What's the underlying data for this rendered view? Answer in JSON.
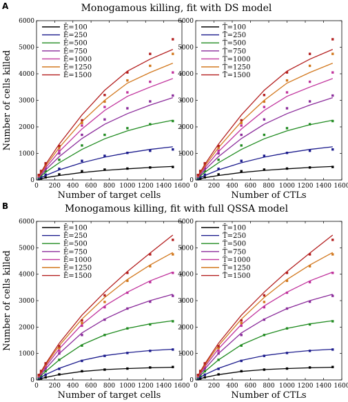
{
  "panels": [
    {
      "letter": "A",
      "title": "Monogamous killing, fit with DS model"
    },
    {
      "letter": "B",
      "title": "Monogamous killing, fit with full QSSA model"
    }
  ],
  "colors": [
    "#000000",
    "#1a1a8c",
    "#1e8a1e",
    "#8a2a9a",
    "#c0329c",
    "#d2781e",
    "#b31e1e"
  ],
  "chart_data": [
    {
      "type": "line",
      "panel": "A",
      "xlabel": "Number of target cells",
      "ylabel": "Number of cells killed",
      "xlim": [
        0,
        1600
      ],
      "ylim": [
        0,
        6000
      ],
      "xticks": [
        0,
        200,
        400,
        600,
        800,
        1000,
        1200,
        1400,
        1600
      ],
      "yticks": [
        0,
        1000,
        2000,
        3000,
        4000,
        5000,
        6000
      ],
      "legend_position": "top-left",
      "x": [
        25,
        50,
        100,
        250,
        500,
        750,
        1000,
        1250,
        1500
      ],
      "series": [
        {
          "name": "Ē=100",
          "points": [
            30,
            55,
            100,
            210,
            330,
            390,
            430,
            470,
            490
          ],
          "fit": [
            20,
            45,
            85,
            170,
            280,
            360,
            420,
            470,
            510
          ]
        },
        {
          "name": "Ē=250",
          "points": [
            60,
            110,
            200,
            420,
            720,
            910,
            1020,
            1100,
            1150
          ],
          "fit": [
            40,
            90,
            170,
            380,
            650,
            860,
            1020,
            1150,
            1250
          ]
        },
        {
          "name": "Ē=500",
          "points": [
            90,
            170,
            330,
            760,
            1300,
            1700,
            1950,
            2100,
            2220
          ],
          "fit": [
            70,
            150,
            290,
            650,
            1150,
            1550,
            1850,
            2080,
            2250
          ]
        },
        {
          "name": "Ē=750",
          "points": [
            120,
            230,
            430,
            1000,
            1700,
            2280,
            2700,
            2960,
            3180
          ],
          "fit": [
            95,
            190,
            380,
            880,
            1560,
            2100,
            2500,
            2820,
            3100
          ]
        },
        {
          "name": "Ē=1000",
          "points": [
            150,
            270,
            520,
            1100,
            2050,
            2750,
            3300,
            3700,
            4050
          ],
          "fit": [
            115,
            230,
            460,
            1070,
            1920,
            2620,
            3150,
            3500,
            3820
          ]
        },
        {
          "name": "Ē=1250",
          "points": [
            170,
            310,
            580,
            1200,
            2150,
            2950,
            3750,
            4300,
            4750
          ],
          "fit": [
            130,
            260,
            530,
            1220,
            2200,
            3000,
            3650,
            4050,
            4400
          ]
        },
        {
          "name": "Ē=1500",
          "points": [
            190,
            340,
            630,
            1280,
            2250,
            3200,
            4050,
            4750,
            5300
          ],
          "fit": [
            145,
            290,
            590,
            1350,
            2450,
            3380,
            4100,
            4550,
            4920
          ]
        }
      ]
    },
    {
      "type": "line",
      "panel": "A",
      "xlabel": "Number of CTLs",
      "ylabel": "",
      "xlim": [
        0,
        1600
      ],
      "ylim": [
        0,
        6000
      ],
      "xticks": [
        0,
        200,
        400,
        600,
        800,
        1000,
        1200,
        1400,
        1600
      ],
      "yticks": [
        0,
        1000,
        2000,
        3000,
        4000,
        5000,
        6000
      ],
      "legend_position": "top-left",
      "x": [
        25,
        50,
        100,
        250,
        500,
        750,
        1000,
        1250,
        1500
      ],
      "series": [
        {
          "name": "T̄=100",
          "points": [
            30,
            55,
            100,
            210,
            330,
            390,
            430,
            470,
            490
          ],
          "fit": [
            20,
            45,
            85,
            170,
            280,
            360,
            420,
            470,
            510
          ]
        },
        {
          "name": "T̄=250",
          "points": [
            60,
            110,
            200,
            420,
            720,
            910,
            1020,
            1100,
            1150
          ],
          "fit": [
            40,
            90,
            170,
            380,
            650,
            860,
            1020,
            1150,
            1250
          ]
        },
        {
          "name": "T̄=500",
          "points": [
            90,
            170,
            330,
            760,
            1300,
            1700,
            1950,
            2100,
            2220
          ],
          "fit": [
            70,
            150,
            290,
            650,
            1150,
            1550,
            1850,
            2080,
            2250
          ]
        },
        {
          "name": "T̄=750",
          "points": [
            120,
            230,
            430,
            1000,
            1700,
            2280,
            2700,
            2960,
            3180
          ],
          "fit": [
            95,
            190,
            380,
            880,
            1560,
            2100,
            2500,
            2820,
            3100
          ]
        },
        {
          "name": "T̄=1000",
          "points": [
            150,
            270,
            520,
            1100,
            2050,
            2750,
            3300,
            3700,
            4050
          ],
          "fit": [
            115,
            230,
            460,
            1070,
            1920,
            2620,
            3150,
            3500,
            3820
          ]
        },
        {
          "name": "T̄=1250",
          "points": [
            170,
            310,
            580,
            1200,
            2150,
            2950,
            3750,
            4300,
            4750
          ],
          "fit": [
            130,
            260,
            530,
            1220,
            2200,
            3000,
            3650,
            4050,
            4400
          ]
        },
        {
          "name": "T̄=1500",
          "points": [
            190,
            340,
            630,
            1280,
            2250,
            3200,
            4050,
            4750,
            5300
          ],
          "fit": [
            145,
            290,
            590,
            1350,
            2450,
            3380,
            4100,
            4550,
            4920
          ]
        }
      ]
    },
    {
      "type": "line",
      "panel": "B",
      "xlabel": "Number of target cells",
      "ylabel": "Number of cells killed",
      "xlim": [
        0,
        1600
      ],
      "ylim": [
        0,
        6000
      ],
      "xticks": [
        0,
        200,
        400,
        600,
        800,
        1000,
        1200,
        1400,
        1600
      ],
      "yticks": [
        0,
        1000,
        2000,
        3000,
        4000,
        5000,
        6000
      ],
      "legend_position": "top-left",
      "x": [
        25,
        50,
        100,
        250,
        500,
        750,
        1000,
        1250,
        1500
      ],
      "series": [
        {
          "name": "Ē=100",
          "points": [
            30,
            55,
            100,
            210,
            330,
            390,
            430,
            470,
            490
          ],
          "fit": [
            25,
            50,
            95,
            200,
            320,
            390,
            430,
            460,
            480
          ]
        },
        {
          "name": "Ē=250",
          "points": [
            60,
            110,
            200,
            420,
            720,
            910,
            1020,
            1100,
            1150
          ],
          "fit": [
            55,
            105,
            200,
            440,
            740,
            920,
            1030,
            1110,
            1160
          ]
        },
        {
          "name": "Ē=500",
          "points": [
            90,
            170,
            330,
            760,
            1300,
            1700,
            1950,
            2100,
            2220
          ],
          "fit": [
            85,
            165,
            320,
            760,
            1330,
            1700,
            1950,
            2120,
            2240
          ]
        },
        {
          "name": "Ē=750",
          "points": [
            120,
            230,
            430,
            1000,
            1700,
            2280,
            2700,
            2960,
            3180
          ],
          "fit": [
            110,
            215,
            420,
            1000,
            1780,
            2300,
            2700,
            3000,
            3240
          ]
        },
        {
          "name": "Ē=1000",
          "points": [
            150,
            270,
            520,
            1100,
            2050,
            2750,
            3300,
            3700,
            4050
          ],
          "fit": [
            130,
            255,
            500,
            1180,
            2100,
            2800,
            3320,
            3750,
            4080
          ]
        },
        {
          "name": "Ē=1250",
          "points": [
            170,
            310,
            580,
            1200,
            2150,
            2950,
            3750,
            4300,
            4750
          ],
          "fit": [
            145,
            285,
            560,
            1300,
            2300,
            3120,
            3800,
            4350,
            4820
          ]
        },
        {
          "name": "Ē=1500",
          "points": [
            190,
            340,
            630,
            1280,
            2250,
            3200,
            4050,
            4750,
            5300
          ],
          "fit": [
            160,
            310,
            610,
            1390,
            2450,
            3320,
            4100,
            4800,
            5480
          ]
        }
      ]
    },
    {
      "type": "line",
      "panel": "B",
      "xlabel": "Number of CTLs",
      "ylabel": "",
      "xlim": [
        0,
        1600
      ],
      "ylim": [
        0,
        6000
      ],
      "xticks": [
        0,
        200,
        400,
        600,
        800,
        1000,
        1200,
        1400,
        1600
      ],
      "yticks": [
        0,
        1000,
        2000,
        3000,
        4000,
        5000,
        6000
      ],
      "legend_position": "top-left",
      "x": [
        25,
        50,
        100,
        250,
        500,
        750,
        1000,
        1250,
        1500
      ],
      "series": [
        {
          "name": "T̄=100",
          "points": [
            30,
            55,
            100,
            210,
            330,
            390,
            430,
            470,
            490
          ],
          "fit": [
            25,
            50,
            95,
            200,
            320,
            390,
            430,
            460,
            480
          ]
        },
        {
          "name": "T̄=250",
          "points": [
            60,
            110,
            200,
            420,
            720,
            910,
            1020,
            1100,
            1150
          ],
          "fit": [
            55,
            105,
            200,
            440,
            740,
            920,
            1030,
            1110,
            1160
          ]
        },
        {
          "name": "T̄=500",
          "points": [
            90,
            170,
            330,
            760,
            1300,
            1700,
            1950,
            2100,
            2220
          ],
          "fit": [
            85,
            165,
            320,
            760,
            1330,
            1700,
            1950,
            2120,
            2240
          ]
        },
        {
          "name": "T̄=750",
          "points": [
            120,
            230,
            430,
            1000,
            1700,
            2280,
            2700,
            2960,
            3180
          ],
          "fit": [
            110,
            215,
            420,
            1000,
            1780,
            2300,
            2700,
            3000,
            3240
          ]
        },
        {
          "name": "T̄=1000",
          "points": [
            150,
            270,
            520,
            1100,
            2050,
            2750,
            3300,
            3700,
            4050
          ],
          "fit": [
            130,
            255,
            500,
            1180,
            2100,
            2800,
            3320,
            3750,
            4080
          ]
        },
        {
          "name": "T̄=1250",
          "points": [
            170,
            310,
            580,
            1200,
            2150,
            2950,
            3750,
            4300,
            4750
          ],
          "fit": [
            145,
            285,
            560,
            1300,
            2300,
            3120,
            3800,
            4350,
            4820
          ]
        },
        {
          "name": "T̄=1500",
          "points": [
            190,
            340,
            630,
            1280,
            2250,
            3200,
            4050,
            4750,
            5300
          ],
          "fit": [
            160,
            310,
            610,
            1390,
            2450,
            3320,
            4100,
            4800,
            5480
          ]
        }
      ]
    }
  ]
}
